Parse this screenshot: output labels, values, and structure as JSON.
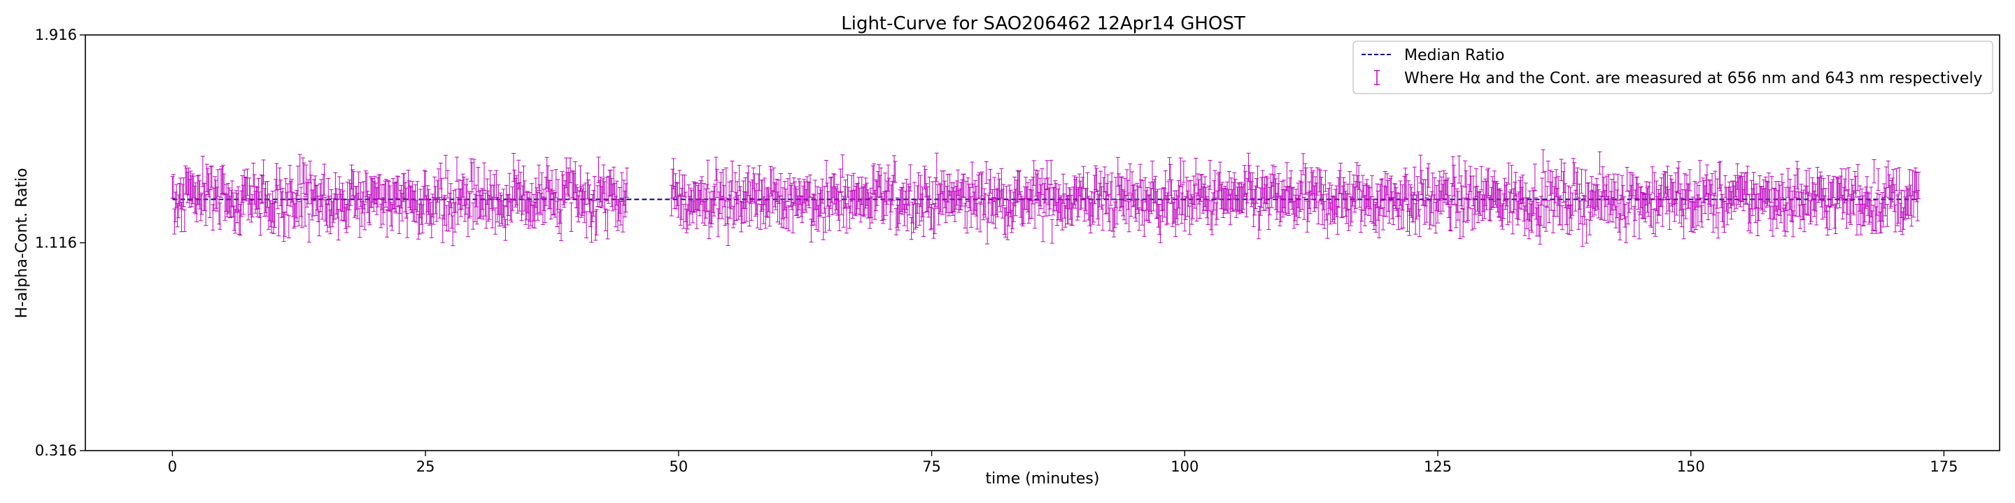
{
  "chart_data": {
    "type": "scatter",
    "title": "Light-Curve for SAO206462 12Apr14 GHOST",
    "xlabel": "time (minutes)",
    "ylabel": "H-alpha-Cont. Ratio",
    "xlim": [
      -8.6,
      180.5
    ],
    "ylim": [
      0.316,
      1.916
    ],
    "xticks": [
      0,
      25,
      50,
      75,
      100,
      125,
      150,
      175
    ],
    "yticks": [
      0.316,
      1.116,
      1.916
    ],
    "grid": false,
    "legend_position": "top-right",
    "median_ratio": 1.283,
    "colors": {
      "data": "#bf00bf",
      "median": "#00008b"
    },
    "series": [
      {
        "name": "Median Ratio",
        "kind": "line",
        "style": "dashed",
        "x": [
          0,
          172.5
        ],
        "y": [
          1.283,
          1.283
        ]
      },
      {
        "name": "Where Hα and the Cont. are measured at 656 nm and 643 nm respectively",
        "kind": "errorbar",
        "segments": [
          {
            "x_start": 0,
            "x_end": 45
          },
          {
            "x_start": 49.3,
            "x_end": 172.5
          }
        ],
        "center": 1.283,
        "spread": 0.09,
        "error": 0.05,
        "y_range_observed": [
          1.11,
          1.5
        ]
      }
    ]
  }
}
